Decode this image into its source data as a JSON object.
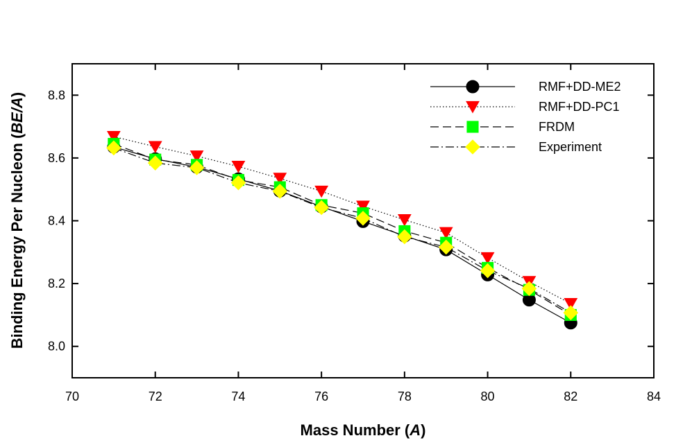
{
  "chart_data": {
    "type": "line",
    "title": "",
    "xlabel": "Mass Number (A)",
    "xlabel_parts": [
      "Mass Number (",
      "A",
      ")"
    ],
    "ylabel": "Binding Energy Per Nucleon (BE/A)",
    "ylabel_parts": [
      "Binding Energy Per Nucleon (",
      "BE/A",
      ")"
    ],
    "xlim": [
      70,
      84
    ],
    "ylim": [
      7.9,
      8.9
    ],
    "xticks": [
      70,
      72,
      74,
      76,
      78,
      80,
      82,
      84
    ],
    "yticks": [
      8.0,
      8.2,
      8.4,
      8.6,
      8.8
    ],
    "legend_position": "top-right",
    "grid": false,
    "x": [
      71,
      72,
      73,
      74,
      75,
      76,
      77,
      78,
      79,
      80,
      81,
      82
    ],
    "series": [
      {
        "name": "RMF+DD-ME2",
        "marker": "circle",
        "line": "solid",
        "color": "#000000",
        "values": [
          8.635,
          8.597,
          8.571,
          8.533,
          8.495,
          8.445,
          8.398,
          8.352,
          8.308,
          8.228,
          8.148,
          8.075
        ]
      },
      {
        "name": "RMF+DD-PC1",
        "marker": "triangle-down",
        "line": "dotted",
        "color": "#ff0000",
        "values": [
          8.668,
          8.636,
          8.606,
          8.573,
          8.535,
          8.494,
          8.446,
          8.403,
          8.362,
          8.282,
          8.206,
          8.136
        ]
      },
      {
        "name": "FRDM",
        "marker": "square",
        "line": "dashed",
        "color": "#00ff00",
        "values": [
          8.645,
          8.595,
          8.578,
          8.53,
          8.507,
          8.45,
          8.424,
          8.367,
          8.33,
          8.25,
          8.18,
          8.1
        ]
      },
      {
        "name": "Experiment",
        "marker": "diamond",
        "line": "dash-dot",
        "color": "#ffff00",
        "values": [
          8.632,
          8.584,
          8.569,
          8.521,
          8.494,
          8.442,
          8.408,
          8.349,
          8.316,
          8.241,
          8.184,
          8.107
        ]
      }
    ]
  }
}
